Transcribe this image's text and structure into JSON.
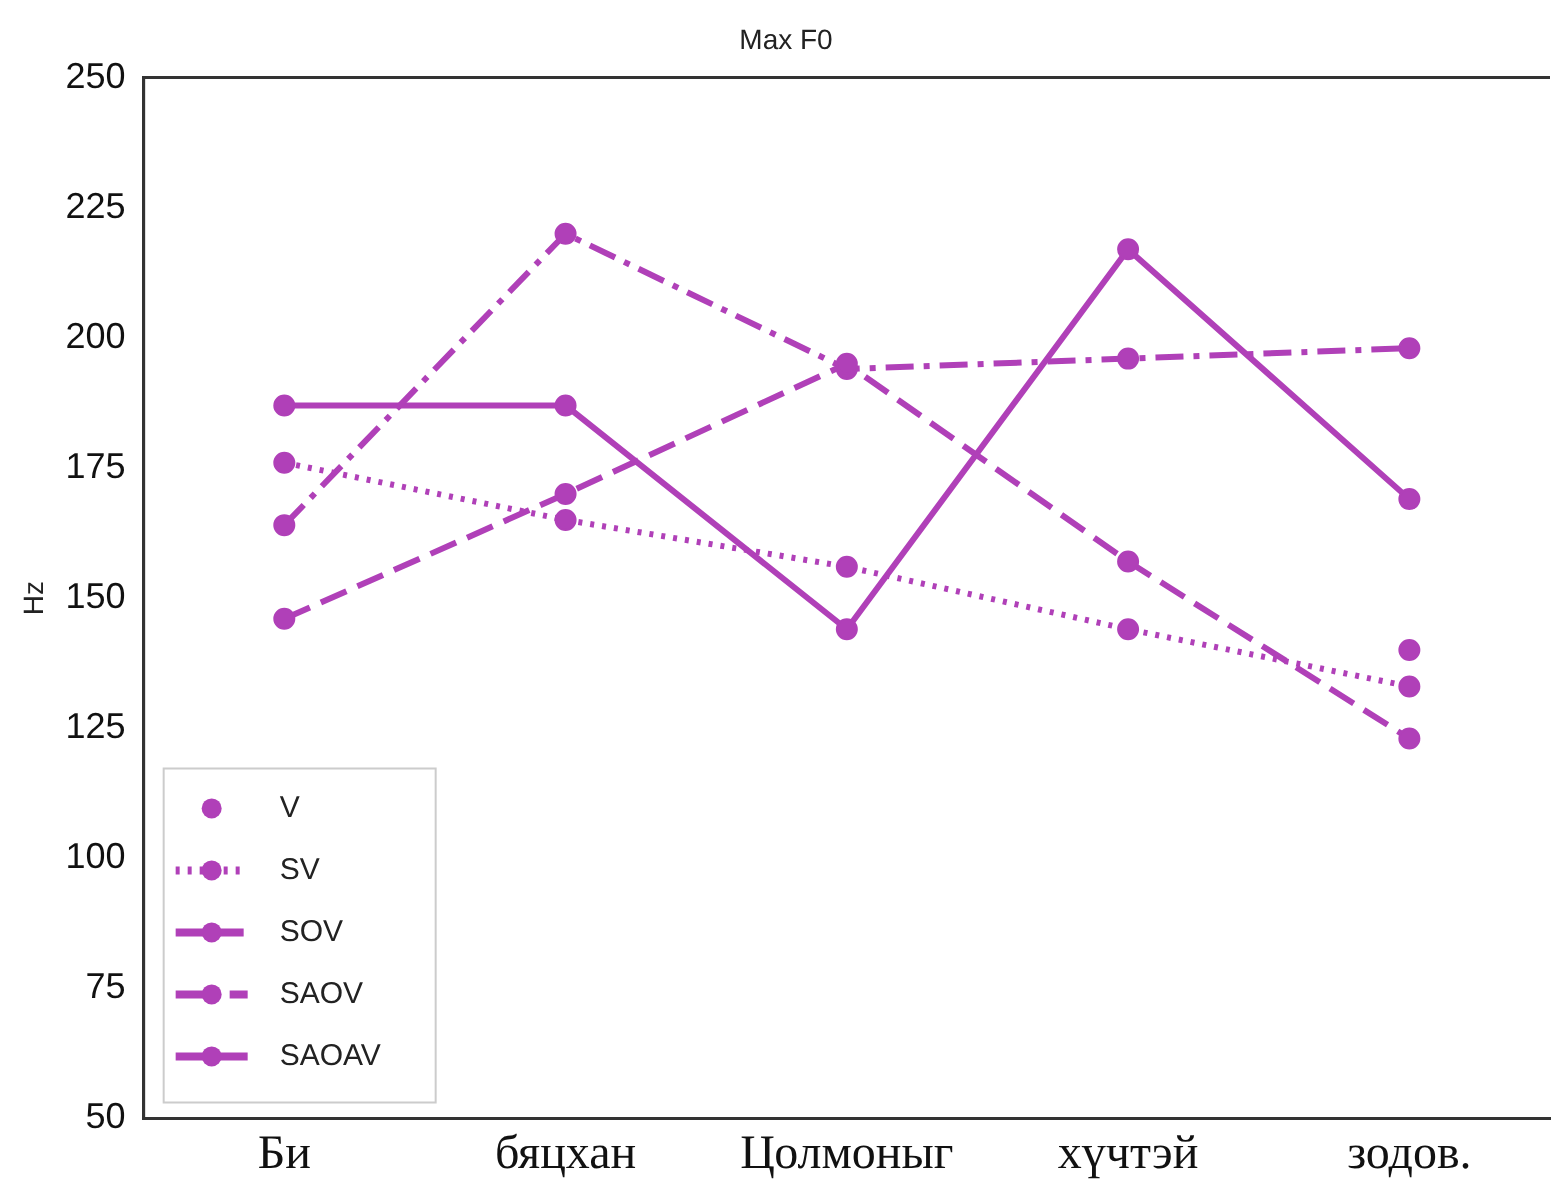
{
  "chart_data": {
    "type": "line",
    "title": "Max F0",
    "ylabel": "Hz",
    "categories": [
      "Би",
      "бяцхан",
      "Цолмоныг",
      "хүчтэй",
      "зодов."
    ],
    "series": [
      {
        "name": "V",
        "color": "#b040b8",
        "line_style": "none",
        "values": [
          null,
          null,
          null,
          null,
          140
        ]
      },
      {
        "name": "SV",
        "color": "#b040b8",
        "line_style": "dotted",
        "values": [
          176,
          165,
          156,
          144,
          133
        ]
      },
      {
        "name": "SOV",
        "color": "#b040b8",
        "line_style": "dashed",
        "values": [
          146,
          170,
          195,
          157,
          123
        ]
      },
      {
        "name": "SAOV",
        "color": "#b040b8",
        "line_style": "dashdot",
        "values": [
          164,
          220,
          194,
          196,
          198
        ]
      },
      {
        "name": "SAOAV",
        "color": "#b040b8",
        "line_style": "solid",
        "values": [
          187,
          187,
          144,
          217,
          169
        ]
      }
    ],
    "ylim": [
      50,
      250
    ],
    "yticks": [
      50,
      75,
      100,
      125,
      150,
      175,
      200,
      225,
      250
    ],
    "grid": false,
    "legend": "bottom left",
    "marker": "circle"
  }
}
